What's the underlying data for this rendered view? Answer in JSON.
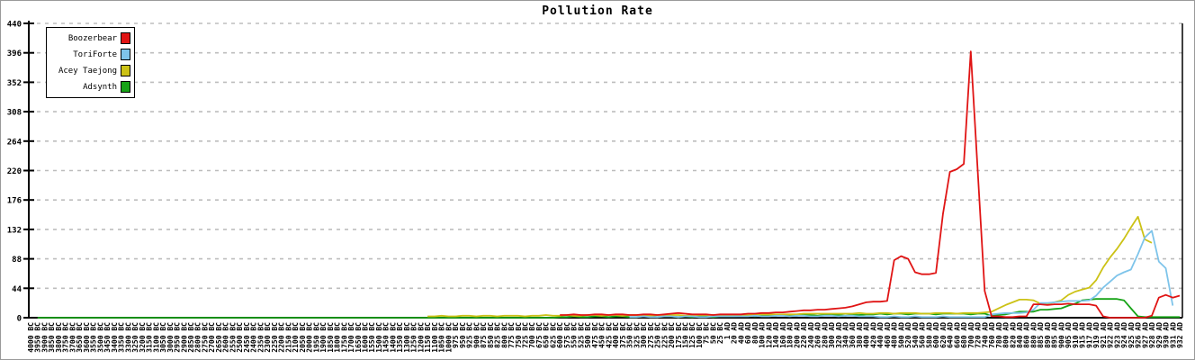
{
  "window": {
    "title": "Pollution Rate"
  },
  "chart_data": {
    "type": "line",
    "title": "Pollution Rate",
    "xlabel": "",
    "ylabel": "",
    "ylim": [
      0,
      440
    ],
    "yticks": [
      0,
      44,
      88,
      132,
      176,
      220,
      264,
      308,
      352,
      396,
      440
    ],
    "grid": "horizontal-dashed",
    "grid_color": "#bdbdbd",
    "axis_color": "#000000",
    "legend_position": "top-left",
    "categories": [
      "4000 BC",
      "3950 BC",
      "3900 BC",
      "3850 BC",
      "3800 BC",
      "3750 BC",
      "3700 BC",
      "3650 BC",
      "3600 BC",
      "3550 BC",
      "3500 BC",
      "3450 BC",
      "3400 BC",
      "3350 BC",
      "3300 BC",
      "3250 BC",
      "3200 BC",
      "3150 BC",
      "3100 BC",
      "3050 BC",
      "3000 BC",
      "2950 BC",
      "2900 BC",
      "2850 BC",
      "2800 BC",
      "2750 BC",
      "2700 BC",
      "2650 BC",
      "2600 BC",
      "2550 BC",
      "2500 BC",
      "2450 BC",
      "2400 BC",
      "2350 BC",
      "2300 BC",
      "2250 BC",
      "2200 BC",
      "2150 BC",
      "2100 BC",
      "2050 BC",
      "2000 BC",
      "1950 BC",
      "1900 BC",
      "1850 BC",
      "1800 BC",
      "1750 BC",
      "1700 BC",
      "1650 BC",
      "1600 BC",
      "1550 BC",
      "1500 BC",
      "1450 BC",
      "1400 BC",
      "1350 BC",
      "1300 BC",
      "1250 BC",
      "1200 BC",
      "1150 BC",
      "1100 BC",
      "1050 BC",
      "1000 BC",
      "975 BC",
      "950 BC",
      "925 BC",
      "900 BC",
      "875 BC",
      "850 BC",
      "825 BC",
      "800 BC",
      "775 BC",
      "750 BC",
      "725 BC",
      "700 BC",
      "675 BC",
      "650 BC",
      "625 BC",
      "600 BC",
      "575 BC",
      "550 BC",
      "525 BC",
      "500 BC",
      "475 BC",
      "450 BC",
      "425 BC",
      "400 BC",
      "375 BC",
      "350 BC",
      "325 BC",
      "300 BC",
      "275 BC",
      "250 BC",
      "225 BC",
      "200 BC",
      "175 BC",
      "150 BC",
      "125 BC",
      "100 BC",
      "75 BC",
      "50 BC",
      "25 BC",
      "1 AD",
      "20 AD",
      "40 AD",
      "60 AD",
      "80 AD",
      "100 AD",
      "120 AD",
      "140 AD",
      "160 AD",
      "180 AD",
      "200 AD",
      "220 AD",
      "240 AD",
      "260 AD",
      "280 AD",
      "300 AD",
      "320 AD",
      "340 AD",
      "360 AD",
      "380 AD",
      "400 AD",
      "420 AD",
      "440 AD",
      "460 AD",
      "480 AD",
      "500 AD",
      "520 AD",
      "540 AD",
      "560 AD",
      "580 AD",
      "600 AD",
      "620 AD",
      "640 AD",
      "660 AD",
      "680 AD",
      "700 AD",
      "720 AD",
      "740 AD",
      "760 AD",
      "780 AD",
      "800 AD",
      "820 AD",
      "840 AD",
      "860 AD",
      "880 AD",
      "885 AD",
      "890 AD",
      "895 AD",
      "900 AD",
      "905 AD",
      "910 AD",
      "915 AD",
      "917 AD",
      "919 AD",
      "921 AD",
      "922 AD",
      "923 AD",
      "924 AD",
      "925 AD",
      "926 AD",
      "927 AD",
      "928 AD",
      "929 AD",
      "930 AD",
      "931 AD",
      "932 AD"
    ],
    "series": [
      {
        "name": "Boozerbear",
        "color": "#e01414",
        "start": 76,
        "values": [
          4,
          4,
          5,
          4,
          4,
          5,
          5,
          4,
          5,
          5,
          4,
          4,
          5,
          5,
          4,
          5,
          6,
          7,
          6,
          5,
          5,
          5,
          4,
          5,
          5,
          5,
          5,
          6,
          6,
          7,
          7,
          8,
          8,
          9,
          10,
          11,
          11,
          12,
          12,
          13,
          14,
          15,
          17,
          20,
          23,
          24,
          24,
          25,
          86,
          92,
          88,
          68,
          65,
          65,
          67,
          155,
          218,
          222,
          230,
          398,
          218,
          40,
          2,
          2,
          1,
          1,
          2,
          2,
          20,
          20,
          19,
          20,
          20,
          21,
          20,
          20,
          20,
          18,
          2,
          0,
          0,
          0,
          0,
          0,
          0,
          3,
          30,
          34,
          30,
          33
        ]
      },
      {
        "name": "ToriForte",
        "color": "#7ec4ea",
        "start": 86,
        "values": [
          1,
          1,
          2,
          1,
          1,
          2,
          2,
          1,
          2,
          2,
          1,
          1,
          2,
          2,
          2,
          2,
          2,
          2,
          3,
          2,
          2,
          3,
          3,
          2,
          3,
          3,
          2,
          2,
          3,
          3,
          2,
          3,
          3,
          2,
          2,
          2,
          1,
          1,
          2,
          1,
          1,
          2,
          1,
          1,
          1,
          2,
          1,
          1,
          1,
          1,
          1,
          1,
          5,
          6,
          7,
          7,
          7,
          8,
          12,
          22,
          22,
          23,
          24,
          25,
          25,
          25,
          26,
          33,
          45,
          54,
          63,
          68,
          72,
          95,
          120,
          130,
          84,
          74,
          18
        ]
      },
      {
        "name": "Acey Taejong",
        "color": "#ccc216",
        "start": 57,
        "values": [
          2,
          2,
          3,
          2,
          2,
          3,
          3,
          2,
          3,
          3,
          2,
          3,
          3,
          3,
          2,
          3,
          3,
          4,
          3,
          3,
          4,
          3,
          3,
          4,
          4,
          3,
          4,
          4,
          3,
          4,
          4,
          4,
          3,
          4,
          4,
          4,
          4,
          3,
          4,
          4,
          4,
          4,
          4,
          4,
          4,
          4,
          4,
          5,
          5,
          5,
          5,
          5,
          5,
          5,
          6,
          6,
          6,
          6,
          6,
          6,
          6,
          6,
          7,
          6,
          6,
          7,
          7,
          6,
          7,
          7,
          7,
          6,
          6,
          7,
          7,
          7,
          6,
          7,
          7,
          7,
          8,
          9,
          14,
          19,
          23,
          27,
          27,
          26,
          21,
          21,
          23,
          26,
          34,
          39,
          42,
          45,
          56,
          75,
          90,
          103,
          118,
          135,
          151,
          117,
          112
        ]
      },
      {
        "name": "Adsynth",
        "color": "#17a317",
        "start": 1,
        "values": [
          0,
          0,
          0,
          0,
          0,
          0,
          0,
          0,
          0,
          0,
          0,
          0,
          0,
          0,
          0,
          0,
          0,
          0,
          0,
          0,
          0,
          0,
          0,
          0,
          0,
          0,
          0,
          0,
          0,
          0,
          0,
          0,
          0,
          0,
          0,
          0,
          0,
          0,
          0,
          0,
          0,
          0,
          0,
          0,
          0,
          0,
          0,
          0,
          0,
          0,
          0,
          0,
          0,
          0,
          0,
          0,
          0,
          0,
          0,
          0,
          0,
          0,
          0,
          0,
          0,
          0,
          0,
          0,
          0,
          0,
          0,
          0,
          0,
          0,
          0,
          1,
          1,
          2,
          1,
          1,
          2,
          2,
          1,
          2,
          2,
          1,
          1,
          2,
          2,
          1,
          2,
          2,
          1,
          2,
          1,
          2,
          2,
          1,
          2,
          2,
          2,
          3,
          3,
          2,
          3,
          3,
          3,
          4,
          3,
          3,
          4,
          4,
          3,
          4,
          4,
          4,
          3,
          4,
          4,
          5,
          5,
          6,
          5,
          6,
          6,
          5,
          6,
          6,
          6,
          5,
          6,
          6,
          6,
          6,
          5,
          6,
          6,
          3,
          4,
          5,
          7,
          9,
          9,
          9,
          12,
          12,
          13,
          14,
          18,
          21,
          26,
          27,
          28,
          28,
          28,
          28,
          26,
          14,
          2,
          1,
          1,
          1,
          1,
          1,
          1
        ]
      }
    ]
  }
}
